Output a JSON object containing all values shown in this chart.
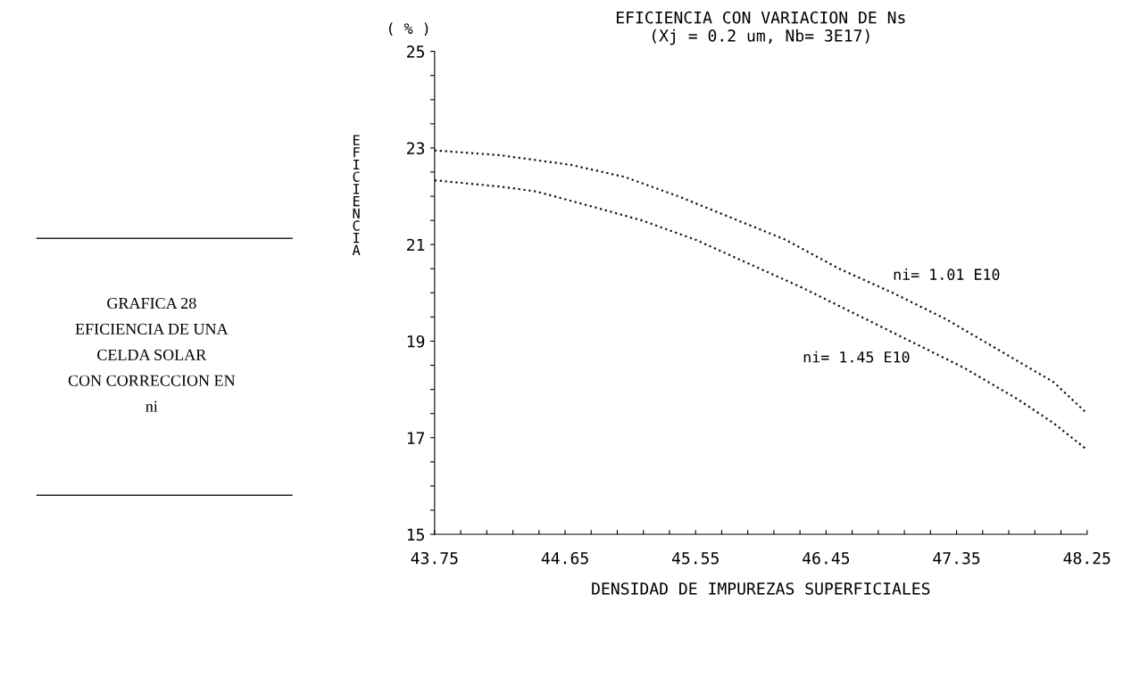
{
  "chart_data": {
    "type": "line",
    "title": "EFICIENCIA CON VARIACION DE Ns\n(Xj = 0.2 um, Nb= 3E17)",
    "xlabel": "DENSIDAD DE IMPUREZAS SUPERFICIALES",
    "ylabel": "EFICIENCIA",
    "annotations": [
      "( % )",
      "GRAFICA 28\nEFICIENCIA DE UNA\nCELDA SOLAR\nCON CORRECCION EN\nni"
    ],
    "series": [
      {
        "name": "ni= 1.01 E10",
        "color": "#111111",
        "x": [
          43.75,
          44.2,
          44.69,
          45.06,
          45.43,
          45.8,
          46.17,
          46.54,
          46.91,
          47.28,
          47.65,
          48.02,
          48.25
        ],
        "values": [
          22.95,
          22.85,
          22.65,
          22.4,
          22.0,
          21.55,
          21.1,
          20.5,
          20.0,
          19.45,
          18.8,
          18.15,
          17.5
        ]
      },
      {
        "name": "ni= 1.45 E10",
        "color": "#111111",
        "x": [
          43.75,
          44.2,
          44.45,
          44.82,
          45.18,
          45.55,
          45.92,
          46.29,
          46.66,
          47.03,
          47.4,
          47.77,
          48.02,
          48.25
        ],
        "values": [
          22.33,
          22.2,
          22.1,
          21.8,
          21.5,
          21.1,
          20.6,
          20.1,
          19.55,
          19.0,
          18.45,
          17.8,
          17.3,
          16.75
        ]
      }
    ],
    "xlim": [
      43.75,
      48.25
    ],
    "ylim": [
      15,
      25
    ],
    "xticks": [
      43.75,
      {
        "value": 43.93,
        "label": null
      },
      {
        "value": 44.11,
        "label": null
      },
      {
        "value": 44.29,
        "label": null
      },
      {
        "value": 44.47,
        "label": null
      },
      44.65,
      {
        "value": 44.83,
        "label": null
      },
      {
        "value": 45.01,
        "label": null
      },
      {
        "value": 45.19,
        "label": null
      },
      {
        "value": 45.37,
        "label": null
      },
      45.55,
      {
        "value": 45.73,
        "label": null
      },
      {
        "value": 45.91,
        "label": null
      },
      {
        "value": 46.09,
        "label": null
      },
      {
        "value": 46.27,
        "label": null
      },
      46.45,
      {
        "value": 46.63,
        "label": null
      },
      {
        "value": 46.81,
        "label": null
      },
      {
        "value": 46.99,
        "label": null
      },
      {
        "value": 47.17,
        "label": null
      },
      47.35,
      {
        "value": 47.53,
        "label": null
      },
      {
        "value": 47.71,
        "label": null
      },
      {
        "value": 47.89,
        "label": null
      },
      {
        "value": 48.07,
        "label": null
      },
      48.25
    ],
    "yticks": [
      15,
      {
        "value": 15.5,
        "label": null
      },
      {
        "value": 16,
        "label": null
      },
      {
        "value": 16.5,
        "label": null
      },
      17,
      {
        "value": 17.5,
        "label": null
      },
      {
        "value": 18,
        "label": null
      },
      {
        "value": 18.5,
        "label": null
      },
      19,
      {
        "value": 19.5,
        "label": null
      },
      {
        "value": 20,
        "label": null
      },
      {
        "value": 20.5,
        "label": null
      },
      21,
      {
        "value": 21.5,
        "label": null
      },
      {
        "value": 22,
        "label": null
      },
      {
        "value": 22.5,
        "label": null
      },
      23,
      {
        "value": 23.5,
        "label": null
      },
      {
        "value": 24,
        "label": null
      },
      {
        "value": 24.5,
        "label": null
      },
      25
    ],
    "grid": false,
    "legend": false,
    "line_style": "dotted",
    "marker": "none"
  }
}
